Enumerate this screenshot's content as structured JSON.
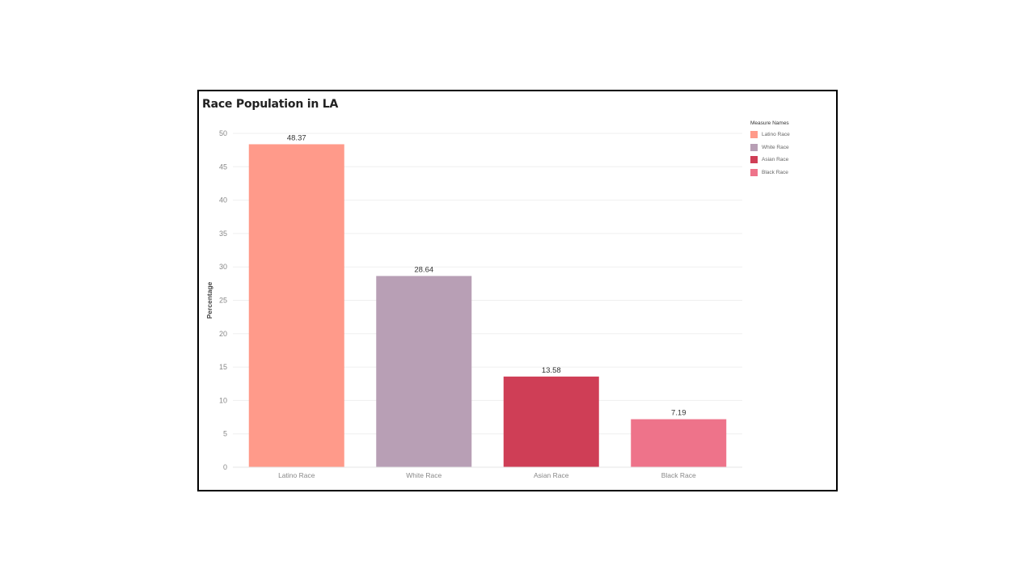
{
  "chart_data": {
    "type": "bar",
    "title": "Race Population in LA",
    "xlabel": "",
    "ylabel": "Percentage",
    "categories": [
      "Latino Race",
      "White Race",
      "Asian Race",
      "Black Race"
    ],
    "values": [
      48.37,
      28.64,
      13.58,
      7.19
    ],
    "value_labels": [
      "48.37",
      "28.64",
      "13.58",
      "7.19"
    ],
    "colors": [
      "#FF9A8A",
      "#B89FB5",
      "#CF3E56",
      "#EE738A"
    ],
    "ylim": [
      0,
      50
    ],
    "yticks": [
      0,
      5,
      10,
      15,
      20,
      25,
      30,
      35,
      40,
      45,
      50
    ],
    "grid": true,
    "legend": {
      "title": "Measure Names",
      "placement": "top-right",
      "entries": [
        "Latino Race",
        "White Race",
        "Asian Race",
        "Black Race"
      ]
    }
  }
}
